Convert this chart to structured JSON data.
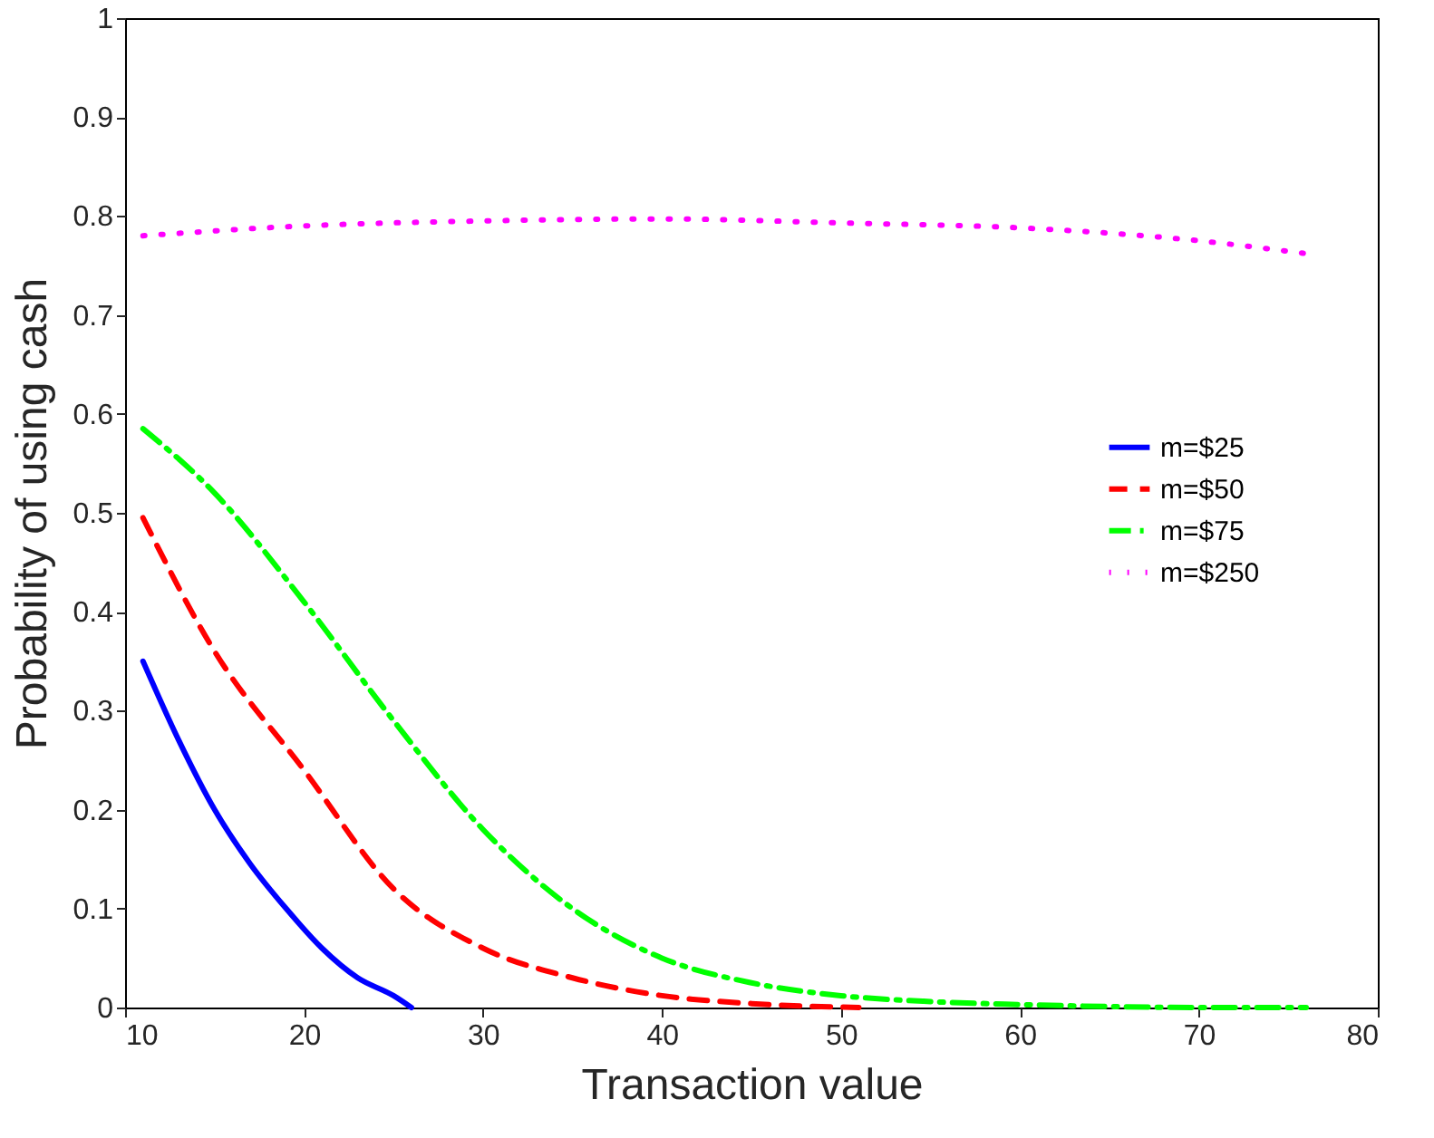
{
  "chart_data": {
    "type": "line",
    "xlabel": "Transaction value",
    "ylabel": "Probability of using cash",
    "xlim": [
      10,
      80
    ],
    "xticks": [
      10,
      20,
      30,
      40,
      50,
      60,
      70,
      80
    ],
    "ylim": [
      0,
      1
    ],
    "yticks": [
      0,
      0.1,
      0.2,
      0.3,
      0.4,
      0.5,
      0.6,
      0.7,
      0.8,
      0.9,
      1
    ],
    "grid": false,
    "legend": "right",
    "marker": "none",
    "series": [
      {
        "name": "m=$25",
        "color": "#0000ff",
        "line_style": "solid",
        "x": [
          11,
          13,
          15,
          17,
          19,
          21,
          23,
          25,
          26
        ],
        "values": [
          0.35,
          0.27,
          0.2,
          0.145,
          0.1,
          0.06,
          0.03,
          0.012,
          0
        ]
      },
      {
        "name": "m=$50",
        "color": "#ff0000",
        "line_style": "dashed",
        "x": [
          11,
          15,
          20,
          25,
          30,
          35,
          40,
          45,
          51
        ],
        "values": [
          0.495,
          0.36,
          0.24,
          0.12,
          0.06,
          0.03,
          0.012,
          0.004,
          0
        ]
      },
      {
        "name": "m=$75",
        "color": "#00ff00",
        "line_style": "dashdot",
        "x": [
          11,
          15,
          20,
          25,
          30,
          35,
          40,
          45,
          50,
          55,
          60,
          65,
          70,
          76
        ],
        "values": [
          0.585,
          0.52,
          0.41,
          0.29,
          0.18,
          0.1,
          0.05,
          0.025,
          0.012,
          0.006,
          0.003,
          0.001,
          0,
          0
        ]
      },
      {
        "name": "m=$250",
        "color": "#ff00ff",
        "line_style": "dotted",
        "x": [
          11,
          20,
          30,
          40,
          50,
          60,
          70,
          76
        ],
        "values": [
          0.78,
          0.79,
          0.795,
          0.797,
          0.793,
          0.788,
          0.775,
          0.762
        ]
      }
    ]
  }
}
